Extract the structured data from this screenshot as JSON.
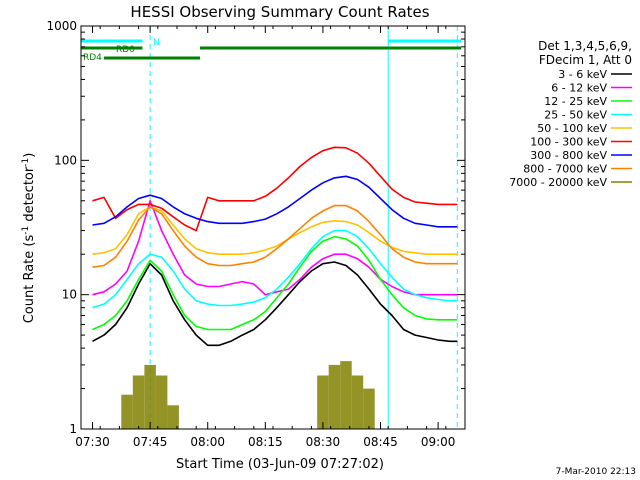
{
  "chart_data": {
    "type": "line",
    "title": "HESSI Observing Summary Count Rates",
    "xlabel": "Start Time (03-Jun-09 07:27:02)",
    "ylabel": "Count Rate (s",
    "ylabel_sup1": "-1",
    "ylabel_mid": " detector",
    "ylabel_sup2": "-1",
    "ylabel_end": ")",
    "y_scale": "log",
    "xlim": [
      "07:27",
      "09:07"
    ],
    "ylim": [
      1,
      1000
    ],
    "x_tick_labels": [
      "07:30",
      "07:45",
      "08:00",
      "08:15",
      "08:30",
      "08:45",
      "09:00"
    ],
    "y_tick_labels": [
      "1",
      "10",
      "100",
      "1000"
    ],
    "legend_header_1": "Det 1,3,4,5,6,9,",
    "legend_header_2": "FDecim 1, Att 0",
    "legend_position": "right",
    "timestamp": "7-Mar-2010 22:13",
    "flag_labels": {
      "n": "N",
      "rd0": "RD0",
      "rd4": "RD4"
    },
    "flags": [
      {
        "label": "N",
        "color": "#00ffff",
        "segments": [
          [
            "07:27",
            "07:43"
          ],
          [
            "08:47",
            "09:06"
          ]
        ]
      },
      {
        "label": "RD0",
        "color": "#008000",
        "segments": [
          [
            "07:27",
            "07:43"
          ],
          [
            "07:58",
            "09:06"
          ]
        ]
      },
      {
        "label": "RD4",
        "color": "#008000",
        "segments": [
          [
            "07:33",
            "07:58"
          ]
        ]
      }
    ],
    "vertical_markers": [
      {
        "time": "07:27",
        "style": "solid"
      },
      {
        "time": "07:45",
        "style": "dashed"
      },
      {
        "time": "08:47",
        "style": "solid"
      },
      {
        "time": "09:05",
        "style": "dashed"
      }
    ],
    "x": [
      "07:30",
      "07:33",
      "07:36",
      "07:39",
      "07:42",
      "07:45",
      "07:48",
      "07:51",
      "07:54",
      "07:57",
      "08:00",
      "08:03",
      "08:06",
      "08:09",
      "08:12",
      "08:15",
      "08:18",
      "08:21",
      "08:24",
      "08:27",
      "08:30",
      "08:33",
      "08:36",
      "08:39",
      "08:42",
      "08:45",
      "08:48",
      "08:51",
      "08:54",
      "08:57",
      "09:00",
      "09:03",
      "09:05"
    ],
    "series": [
      {
        "name": "3 - 6 keV",
        "color": "#000000",
        "values": [
          4.5,
          5,
          6,
          8,
          12,
          17,
          14,
          9,
          6.5,
          5,
          4.2,
          4.2,
          4.5,
          5,
          5.5,
          6.5,
          8,
          10,
          12.5,
          15,
          17,
          17.5,
          16.5,
          14,
          11,
          8.5,
          7,
          5.5,
          5,
          4.8,
          4.6,
          4.5,
          4.5
        ]
      },
      {
        "name": "6 - 12 keV",
        "color": "#ff00ff",
        "values": [
          10,
          10.5,
          12,
          15,
          25,
          50,
          30,
          20,
          14,
          12,
          11.5,
          11.5,
          12,
          12.5,
          12,
          10,
          10.5,
          11,
          13,
          16,
          18.5,
          20,
          20,
          18.5,
          16,
          13,
          11.5,
          10.5,
          10,
          10,
          10,
          10,
          10
        ]
      },
      {
        "name": "12 - 25 keV",
        "color": "#00ff00",
        "values": [
          5.5,
          6,
          7,
          9,
          13,
          18,
          15,
          10,
          7,
          5.8,
          5.5,
          5.5,
          5.5,
          6,
          6.5,
          7.5,
          9.5,
          12,
          16,
          21,
          25,
          27,
          26,
          23,
          18,
          13,
          10,
          8,
          7,
          6.6,
          6.5,
          6.5,
          6.5
        ]
      },
      {
        "name": "25 - 50 keV",
        "color": "#00ffff",
        "values": [
          8,
          8.5,
          10,
          13,
          17,
          20,
          19,
          15,
          11,
          9,
          8.5,
          8.3,
          8.3,
          8.5,
          8.8,
          9.5,
          11,
          13.5,
          17,
          22,
          27,
          30,
          30,
          27,
          22,
          17,
          13.5,
          11,
          10,
          9.5,
          9.2,
          9,
          9
        ]
      },
      {
        "name": "50 - 100 keV",
        "color": "#ffc000",
        "values": [
          20,
          20.5,
          22,
          28,
          40,
          45,
          42,
          33,
          26,
          22,
          20.5,
          20,
          20,
          20,
          20.5,
          21.5,
          23,
          26,
          29,
          32,
          34.5,
          35.5,
          35,
          33,
          29,
          25,
          22.5,
          21,
          20.5,
          20,
          20,
          20,
          20
        ]
      },
      {
        "name": "100 - 300 keV",
        "color": "#ff0000",
        "values": [
          50,
          53,
          37,
          43,
          47,
          47,
          44,
          38,
          33,
          30,
          53,
          50,
          50,
          50,
          50,
          54,
          62,
          74,
          90,
          105,
          118,
          125,
          124,
          113,
          95,
          76,
          61,
          53,
          49,
          48,
          47,
          47,
          47
        ]
      },
      {
        "name": "300 - 800 keV",
        "color": "#0000ff",
        "values": [
          33,
          34,
          38,
          45,
          52,
          55,
          52,
          45,
          40,
          37,
          35,
          34,
          34,
          34,
          35,
          36.5,
          40,
          45,
          52,
          60,
          68,
          74,
          76,
          72,
          63,
          52,
          43,
          37,
          34,
          33,
          32,
          32,
          32
        ]
      },
      {
        "name": "800 - 7000 keV",
        "color": "#ff8000",
        "values": [
          16,
          16.5,
          19,
          25,
          36,
          45,
          40,
          30,
          23,
          19,
          17,
          16.5,
          16.5,
          17,
          17.5,
          19,
          22,
          26,
          31,
          37,
          42,
          46,
          46,
          42,
          35,
          28,
          22,
          19,
          17.5,
          17,
          17,
          17,
          17
        ]
      },
      {
        "name": "7000 - 20000 keV",
        "color": "#808000",
        "values": [
          0,
          0,
          0,
          1.8,
          2.5,
          3,
          2.5,
          1.5,
          0,
          0,
          0,
          0,
          0,
          0,
          0,
          0,
          0,
          0,
          0,
          0,
          2.5,
          3,
          3.2,
          2.5,
          2,
          0,
          0,
          0,
          0,
          0,
          0,
          0,
          0
        ]
      }
    ]
  }
}
